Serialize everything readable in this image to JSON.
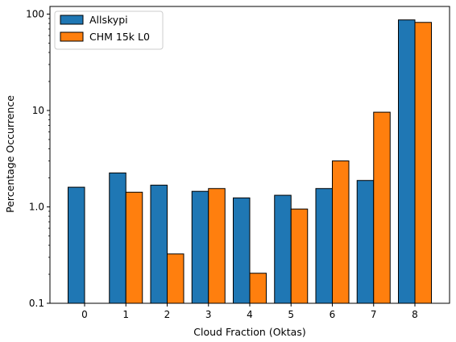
{
  "chart_data": {
    "type": "bar",
    "categories": [
      "0",
      "1",
      "2",
      "3",
      "4",
      "5",
      "6",
      "7",
      "8"
    ],
    "series": [
      {
        "name": "Allskypi",
        "color": "#1f77b4",
        "values": [
          1.6,
          2.25,
          1.68,
          1.45,
          1.24,
          1.32,
          1.55,
          1.88,
          87.0
        ]
      },
      {
        "name": "CHM 15k L0",
        "color": "#ff7f0e",
        "values": [
          null,
          1.42,
          0.325,
          1.55,
          0.205,
          0.95,
          3.0,
          9.6,
          82.0
        ]
      }
    ],
    "xlabel": "Cloud Fraction (Oktas)",
    "ylabel": "Percentage Occurrence",
    "yscale": "log",
    "ylim": [
      0.1,
      120
    ],
    "yticks": [
      0.1,
      1.0,
      10,
      100
    ],
    "ytick_labels": [
      "0.1",
      "1.0",
      "10",
      "100"
    ],
    "legend_position": "top-left",
    "grid": false
  }
}
